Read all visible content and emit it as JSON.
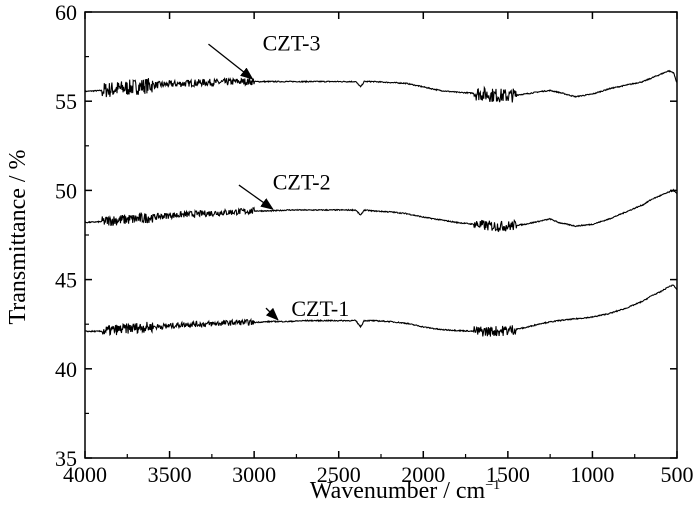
{
  "chart_data": {
    "type": "line",
    "xlabel": "Wavenumber / cm",
    "xlabel_sup": "−1",
    "ylabel": "Transmittance / %",
    "xlim": [
      4000,
      500
    ],
    "ylim": [
      35,
      60
    ],
    "x_ticks": [
      4000,
      3500,
      3000,
      2500,
      2000,
      1500,
      1000,
      500
    ],
    "y_ticks": [
      35,
      40,
      45,
      50,
      55,
      60
    ],
    "grid": false,
    "legend": "none",
    "series": [
      {
        "name": "CZT-3",
        "label_pos": {
          "x": 2950,
          "y": 56.2
        },
        "points": [
          [
            4000,
            55.55
          ],
          [
            3900,
            55.6
          ],
          [
            3800,
            55.7
          ],
          [
            3700,
            55.8
          ],
          [
            3600,
            55.9
          ],
          [
            3500,
            55.95
          ],
          [
            3400,
            56.0
          ],
          [
            3300,
            56.05
          ],
          [
            3200,
            56.05
          ],
          [
            3100,
            56.1
          ],
          [
            3000,
            56.1
          ],
          [
            2900,
            56.1
          ],
          [
            2800,
            56.1
          ],
          [
            2700,
            56.1
          ],
          [
            2600,
            56.1
          ],
          [
            2500,
            56.1
          ],
          [
            2400,
            56.1
          ],
          [
            2370,
            55.8
          ],
          [
            2350,
            56.1
          ],
          [
            2300,
            56.1
          ],
          [
            2200,
            56.05
          ],
          [
            2100,
            56.0
          ],
          [
            2000,
            55.8
          ],
          [
            1900,
            55.6
          ],
          [
            1800,
            55.5
          ],
          [
            1700,
            55.45
          ],
          [
            1600,
            55.35
          ],
          [
            1500,
            55.3
          ],
          [
            1400,
            55.4
          ],
          [
            1300,
            55.55
          ],
          [
            1250,
            55.6
          ],
          [
            1200,
            55.5
          ],
          [
            1100,
            55.25
          ],
          [
            1000,
            55.4
          ],
          [
            900,
            55.7
          ],
          [
            800,
            55.9
          ],
          [
            700,
            56.1
          ],
          [
            650,
            56.3
          ],
          [
            600,
            56.5
          ],
          [
            550,
            56.7
          ],
          [
            520,
            56.6
          ],
          [
            500,
            56.0
          ]
        ],
        "noise": [
          [
            3900,
            3600,
            0.45
          ],
          [
            3600,
            3000,
            0.2
          ],
          [
            1700,
            1450,
            0.4
          ]
        ]
      },
      {
        "name": "CZT-2",
        "label_pos": {
          "x": 2890,
          "y": 48.8
        },
        "points": [
          [
            4000,
            48.2
          ],
          [
            3900,
            48.25
          ],
          [
            3800,
            48.35
          ],
          [
            3700,
            48.4
          ],
          [
            3600,
            48.5
          ],
          [
            3500,
            48.6
          ],
          [
            3400,
            48.65
          ],
          [
            3300,
            48.7
          ],
          [
            3200,
            48.75
          ],
          [
            3100,
            48.8
          ],
          [
            3000,
            48.85
          ],
          [
            2900,
            48.85
          ],
          [
            2800,
            48.9
          ],
          [
            2700,
            48.9
          ],
          [
            2600,
            48.9
          ],
          [
            2500,
            48.9
          ],
          [
            2400,
            48.9
          ],
          [
            2370,
            48.6
          ],
          [
            2350,
            48.9
          ],
          [
            2300,
            48.85
          ],
          [
            2200,
            48.8
          ],
          [
            2100,
            48.7
          ],
          [
            2000,
            48.5
          ],
          [
            1900,
            48.35
          ],
          [
            1800,
            48.2
          ],
          [
            1700,
            48.1
          ],
          [
            1600,
            48.0
          ],
          [
            1500,
            48.0
          ],
          [
            1400,
            48.1
          ],
          [
            1300,
            48.3
          ],
          [
            1250,
            48.4
          ],
          [
            1200,
            48.2
          ],
          [
            1100,
            48.0
          ],
          [
            1000,
            48.1
          ],
          [
            900,
            48.4
          ],
          [
            800,
            48.8
          ],
          [
            700,
            49.2
          ],
          [
            650,
            49.5
          ],
          [
            600,
            49.7
          ],
          [
            550,
            49.9
          ],
          [
            520,
            50.0
          ],
          [
            500,
            49.8
          ]
        ],
        "noise": [
          [
            3900,
            3600,
            0.3
          ],
          [
            3600,
            3000,
            0.18
          ],
          [
            1700,
            1450,
            0.3
          ]
        ]
      },
      {
        "name": "CZT-1",
        "label_pos": {
          "x": 2880,
          "y": 42.6
        },
        "points": [
          [
            4000,
            42.1
          ],
          [
            3900,
            42.1
          ],
          [
            3800,
            42.2
          ],
          [
            3700,
            42.3
          ],
          [
            3600,
            42.35
          ],
          [
            3500,
            42.4
          ],
          [
            3400,
            42.5
          ],
          [
            3300,
            42.5
          ],
          [
            3200,
            42.55
          ],
          [
            3100,
            42.6
          ],
          [
            3000,
            42.6
          ],
          [
            2900,
            42.65
          ],
          [
            2800,
            42.65
          ],
          [
            2700,
            42.7
          ],
          [
            2600,
            42.7
          ],
          [
            2500,
            42.7
          ],
          [
            2400,
            42.7
          ],
          [
            2370,
            42.35
          ],
          [
            2350,
            42.7
          ],
          [
            2300,
            42.7
          ],
          [
            2200,
            42.65
          ],
          [
            2100,
            42.55
          ],
          [
            2000,
            42.35
          ],
          [
            1900,
            42.2
          ],
          [
            1800,
            42.15
          ],
          [
            1700,
            42.1
          ],
          [
            1600,
            42.1
          ],
          [
            1500,
            42.15
          ],
          [
            1400,
            42.3
          ],
          [
            1300,
            42.55
          ],
          [
            1200,
            42.7
          ],
          [
            1100,
            42.8
          ],
          [
            1000,
            42.9
          ],
          [
            900,
            43.1
          ],
          [
            800,
            43.4
          ],
          [
            700,
            43.8
          ],
          [
            650,
            44.1
          ],
          [
            600,
            44.3
          ],
          [
            550,
            44.6
          ],
          [
            520,
            44.7
          ],
          [
            500,
            44.4
          ]
        ],
        "noise": [
          [
            3900,
            3600,
            0.3
          ],
          [
            3600,
            3000,
            0.16
          ],
          [
            1700,
            1450,
            0.3
          ]
        ]
      }
    ],
    "annotations": [
      {
        "text": "CZT-3",
        "text_x": 2950,
        "text_y": 58.3,
        "arrow_from": [
          3270,
          58.2
        ],
        "arrow_to": [
          3010,
          56.25
        ]
      },
      {
        "text": "CZT-2",
        "text_x": 2890,
        "text_y": 50.5,
        "arrow_from": [
          3090,
          50.3
        ],
        "arrow_to": [
          2890,
          48.95
        ]
      },
      {
        "text": "CZT-1",
        "text_x": 2780,
        "text_y": 43.4,
        "arrow_from": [
          2930,
          43.4
        ],
        "arrow_to": [
          2860,
          42.75
        ]
      }
    ]
  }
}
